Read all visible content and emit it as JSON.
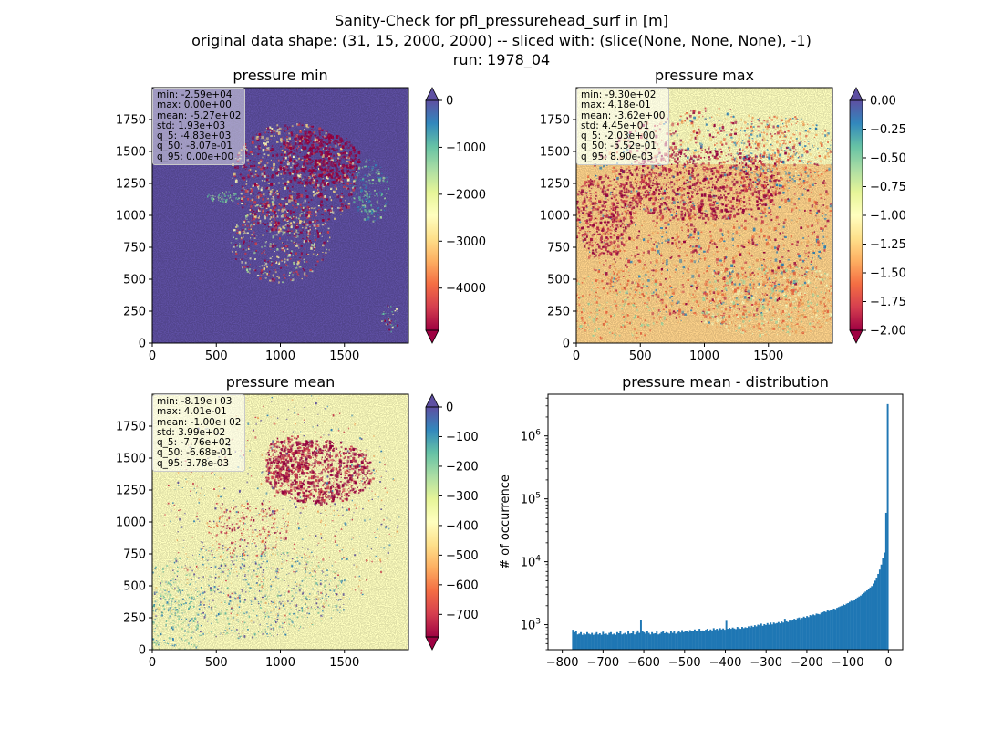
{
  "figure": {
    "title_lines": [
      "Sanity-Check for pfl_pressurehead_surf in [m]",
      "original data shape: (31, 15, 2000, 2000) -- sliced with: (slice(None, None, None), -1)",
      "run: 1978_04"
    ]
  },
  "chart_data": [
    {
      "type": "heatmap",
      "title": "pressure min",
      "xlabel": "",
      "ylabel": "",
      "xlim": [
        0,
        2000
      ],
      "ylim": [
        0,
        2000
      ],
      "x_ticks": [
        0,
        500,
        1000,
        1500
      ],
      "y_ticks": [
        0,
        250,
        500,
        750,
        1000,
        1250,
        1500,
        1750
      ],
      "colormap": "Spectral",
      "colorbar": {
        "vmin": -4900,
        "vmax": 0,
        "ticks": [
          0,
          -1000,
          -2000,
          -3000,
          -4000
        ],
        "extend": "both"
      },
      "stats": [
        "min: -2.59e+04",
        "max: 0.00e+00",
        "mean: -5.27e+02",
        "std: 1.93e+03",
        "q_5: -4.83e+03",
        "q_50: -8.07e-01",
        "q_95: 0.00e+00"
      ]
    },
    {
      "type": "heatmap",
      "title": "pressure max",
      "xlabel": "",
      "ylabel": "",
      "xlim": [
        0,
        2000
      ],
      "ylim": [
        0,
        2000
      ],
      "x_ticks": [
        0,
        500,
        1000,
        1500
      ],
      "y_ticks": [
        0,
        250,
        500,
        750,
        1000,
        1250,
        1500,
        1750
      ],
      "colormap": "Spectral",
      "colorbar": {
        "vmin": -2.0,
        "vmax": 0.0,
        "ticks": [
          "0.00",
          "-0.25",
          "-0.50",
          "-0.75",
          "-1.00",
          "-1.25",
          "-1.50",
          "-1.75",
          "-2.00"
        ],
        "extend": "both"
      },
      "stats": [
        "min: -9.30e+02",
        "max: 4.18e-01",
        "mean: -3.62e+00",
        "std: 4.45e+01",
        "q_5: -2.03e+00",
        "q_50: -5.52e-01",
        "q_95: 8.90e-03"
      ]
    },
    {
      "type": "heatmap",
      "title": "pressure mean",
      "xlabel": "",
      "ylabel": "",
      "xlim": [
        0,
        2000
      ],
      "ylim": [
        0,
        2000
      ],
      "x_ticks": [
        0,
        500,
        1000,
        1500
      ],
      "y_ticks": [
        0,
        250,
        500,
        750,
        1000,
        1250,
        1500,
        1750
      ],
      "colormap": "Spectral",
      "colorbar": {
        "vmin": -776,
        "vmax": 0,
        "ticks": [
          0,
          -100,
          -200,
          -300,
          -400,
          -500,
          -600,
          -700
        ],
        "extend": "both"
      },
      "stats": [
        "min: -8.19e+03",
        "max: 4.01e-01",
        "mean: -1.00e+02",
        "std: 3.99e+02",
        "q_5: -7.76e+02",
        "q_50: -6.68e-01",
        "q_95: 3.78e-03"
      ]
    },
    {
      "type": "bar",
      "title": "pressure mean - distribution",
      "xlabel": "",
      "ylabel": "# of occurrence",
      "xlim": [
        -835,
        35
      ],
      "ylim": [
        400,
        4600000
      ],
      "yscale": "log",
      "x_ticks": [
        -800,
        -700,
        -600,
        -500,
        -400,
        -300,
        -200,
        -100,
        0
      ],
      "y_ticks": [
        1000,
        10000,
        100000,
        1000000
      ],
      "y_tick_labels": [
        [
          "10",
          "3"
        ],
        [
          "10",
          "4"
        ],
        [
          "10",
          "5"
        ],
        [
          "10",
          "6"
        ]
      ],
      "color": "#1f77b4",
      "bins": {
        "start": -776,
        "end": 0,
        "count": 200
      },
      "series": [
        {
          "values": [
            830,
            760,
            790,
            700,
            720,
            760,
            690,
            730,
            700,
            760,
            720,
            700,
            740,
            690,
            720,
            760,
            700,
            730,
            690,
            770,
            710,
            720,
            690,
            740,
            760,
            700,
            720,
            690,
            760,
            730,
            780,
            700,
            720,
            740,
            700,
            790,
            720,
            730,
            780,
            700,
            750,
            810,
            740,
            1200,
            780,
            760,
            720,
            780,
            740,
            700,
            760,
            720,
            730,
            780,
            700,
            720,
            760,
            790,
            730,
            760,
            740,
            720,
            780,
            740,
            780,
            720,
            760,
            790,
            750,
            820,
            760,
            780,
            800,
            760,
            820,
            780,
            790,
            840,
            780,
            800,
            860,
            790,
            810,
            780,
            830,
            860,
            800,
            840,
            810,
            880,
            830,
            860,
            820,
            880,
            840,
            870,
            830,
            1150,
            860,
            890,
            860,
            900,
            870,
            850,
            920,
            880,
            860,
            920,
            880,
            910,
            890,
            940,
            900,
            960,
            920,
            980,
            940,
            1000,
            980,
            1040,
            960,
            1020,
            990,
            1060,
            1000,
            1080,
            1010,
            1080,
            1040,
            1060,
            1100,
            1050,
            1120,
            1080,
            1240,
            1130,
            1100,
            1160,
            1150,
            1200,
            1240,
            1180,
            1270,
            1300,
            1220,
            1280,
            1340,
            1290,
            1370,
            1320,
            1420,
            1380,
            1450,
            1410,
            1500,
            1480,
            1460,
            1550,
            1580,
            1620,
            1590,
            1680,
            1650,
            1720,
            1750,
            1800,
            1760,
            1850,
            1900,
            1950,
            2000,
            2100,
            2050,
            2150,
            2200,
            2300,
            2400,
            2350,
            2500,
            2600,
            2700,
            2800,
            2900,
            3050,
            3200,
            3350,
            3500,
            3700,
            3900,
            4100,
            4500,
            5000,
            5600,
            6400,
            7500,
            9000,
            11500,
            14000,
            60000,
            3200000
          ]
        }
      ]
    }
  ]
}
